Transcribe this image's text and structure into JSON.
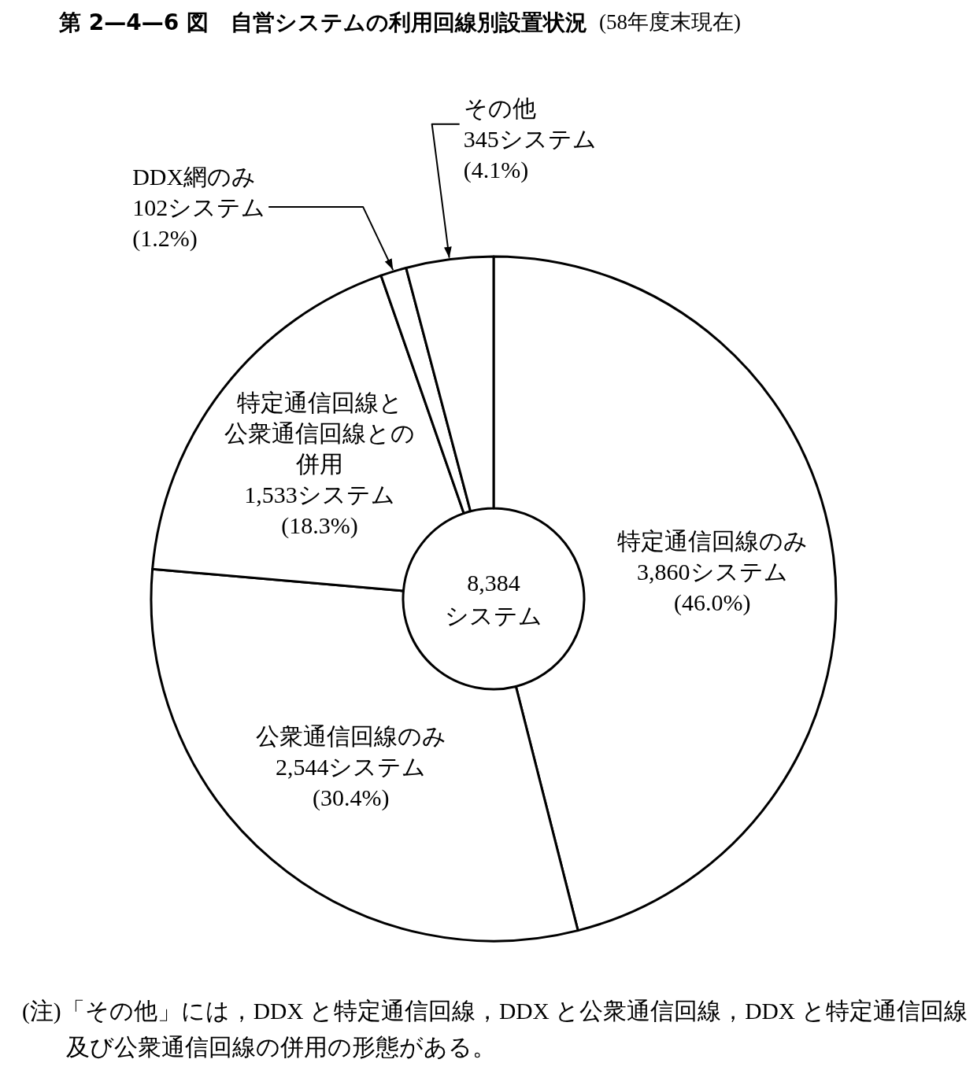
{
  "chart_data": {
    "type": "donut",
    "title": "第 2—4—6 図　自営システムの利用回線別設置状況",
    "subtitle": "(58年度末現在)",
    "categories": [
      "特定通信回線のみ",
      "公衆通信回線のみ",
      "特定通信回線と公衆通信回線との併用",
      "DDX網のみ",
      "その他"
    ],
    "values": [
      3860,
      2544,
      1533,
      102,
      345
    ],
    "colors": [
      "#ffffff",
      "#ffffff",
      "#ffffff",
      "#ffffff",
      "#ffffff"
    ],
    "value_labels": [
      "3,860システム\n(46.0%)",
      "2,544システム\n(30.4%)",
      "1,533システム\n(18.3%)",
      "102システム\n(1.2%)",
      "345システム\n(4.1%)"
    ],
    "annotations": [
      "8,384\nシステム",
      "(注)「その他」には，DDX と特定通信回線，DDX と公衆通信回線，DDX と特定通信回線及び公衆通信回線の併用の形態がある。"
    ]
  }
}
